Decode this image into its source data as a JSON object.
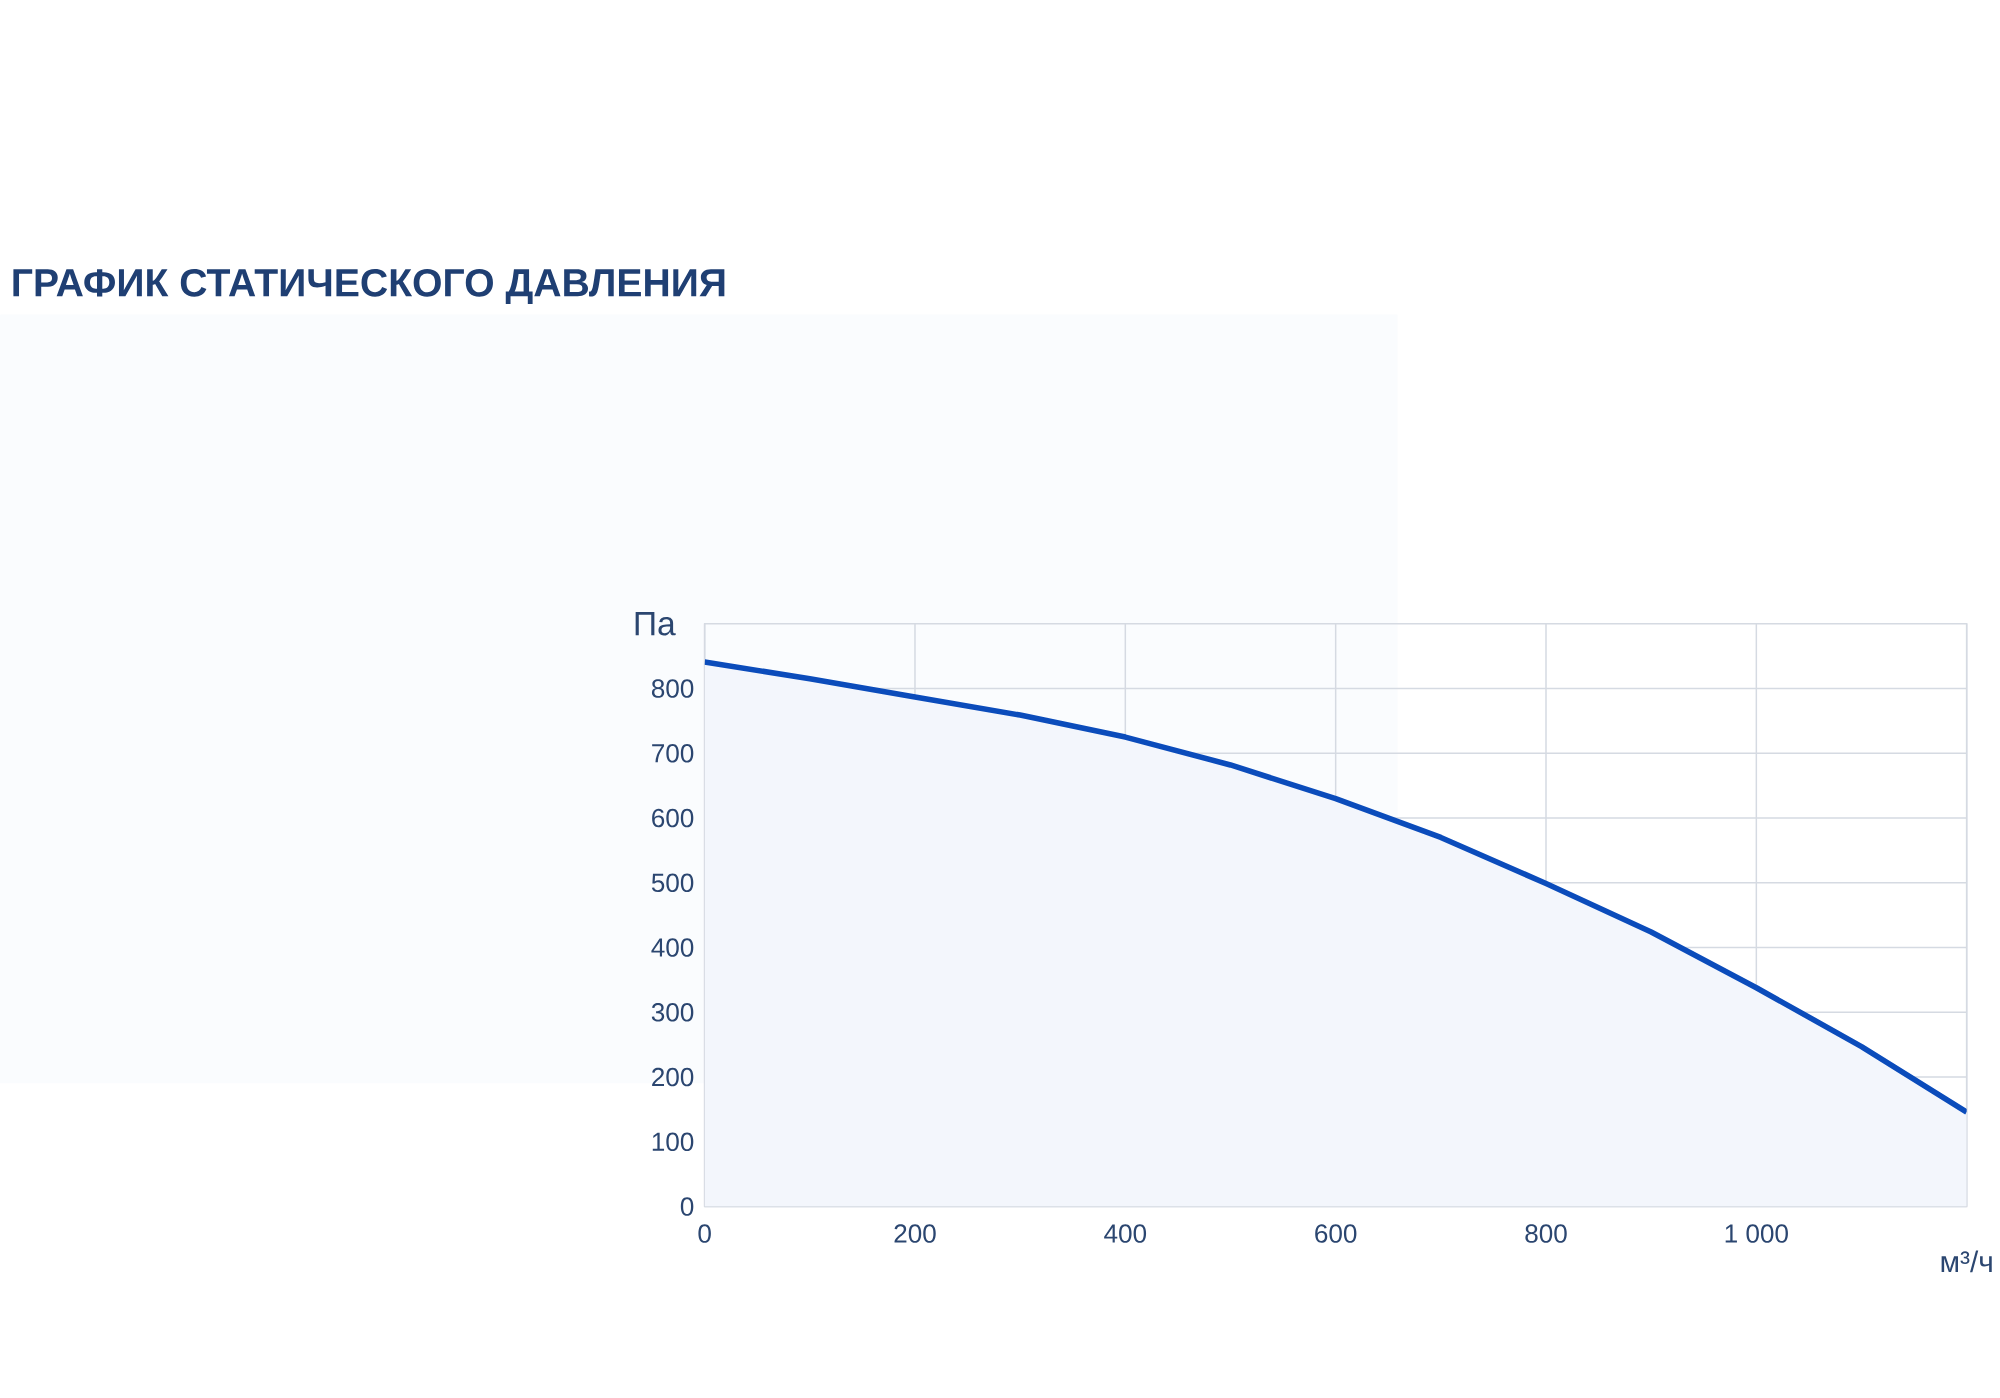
{
  "chart_data": {
    "type": "area",
    "title": "ГРАФИК СТАТИЧЕСКОГО ДАВЛЕНИЯ",
    "xlabel": "м³/ч",
    "ylabel": "Па",
    "x": [
      0,
      100,
      200,
      300,
      400,
      500,
      600,
      700,
      800,
      900,
      1000,
      1100,
      1200
    ],
    "series": [
      {
        "color": "#0b4cbb",
        "values": [
          841,
          815,
          787,
          759,
          725,
          682,
          630,
          570,
          499,
          424,
          338,
          247,
          146
        ]
      }
    ],
    "xlim": [
      0,
      1200
    ],
    "ylim": [
      0,
      900
    ],
    "xticks": [
      0,
      200,
      400,
      600,
      800,
      {
        "value": 1000,
        "label": "1 000"
      },
      {
        "value": 1200,
        "label": null
      }
    ],
    "yticks": [
      0,
      100,
      200,
      300,
      400,
      500,
      600,
      700,
      800
    ],
    "grid": true,
    "marker": "none",
    "line_style": "solid"
  }
}
